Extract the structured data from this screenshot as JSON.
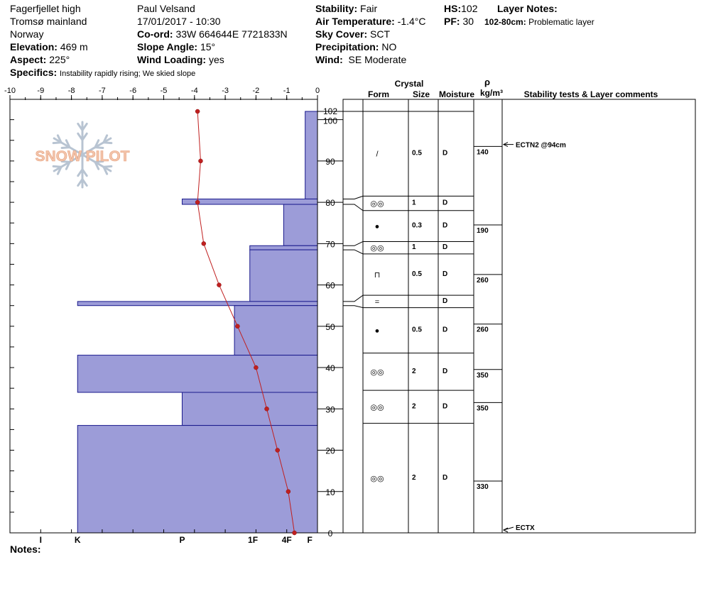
{
  "header": {
    "location": "Fagerfjellet high",
    "region": "Tromsø mainland",
    "country": "Norway",
    "elevation_label": "Elevation:",
    "elevation": "469 m",
    "aspect_label": "Aspect:",
    "aspect": "225°",
    "specifics_label": "Specifics:",
    "specifics": "Instability rapidly rising;  We skied slope",
    "observer": "Paul Velsand",
    "datetime": "17/01/2017 - 10:30",
    "coord_label": "Co-ord:",
    "coord": "33W 664644E 7721833N",
    "slope_label": "Slope Angle:",
    "slope": "15°",
    "wind_loading_label": "Wind Loading:",
    "wind_loading": "yes",
    "stability_label": "Stability:",
    "stability": "Fair",
    "air_temp_label": "Air Temperature:",
    "air_temp": "-1.4°C",
    "sky_label": "Sky Cover:",
    "sky": "SCT",
    "precip_label": "Precipitation:",
    "precip": "NO",
    "wind_label": "Wind:",
    "wind": "SE Moderate",
    "hs_label": "HS:",
    "hs": "102",
    "pf_label": "PF:",
    "pf": "30",
    "layer_notes_label": "Layer Notes:",
    "layer_note_range": "102-80cm:",
    "layer_note_text": "Problematic layer"
  },
  "notes_label": "Notes:",
  "watermark": {
    "text": "SNOW PILOT"
  },
  "columns": {
    "crystal": "Crystal",
    "form": "Form",
    "size": "Size",
    "moisture": "Moisture",
    "rho": "ρ",
    "density_unit": "kg/m³",
    "stability_comments": "Stability tests & Layer comments"
  },
  "chart_data": {
    "type": "profile",
    "temperature_axis": {
      "ticks": [
        -10,
        -9,
        -8,
        -7,
        -6,
        -5,
        -4,
        -3,
        -2,
        -1,
        0
      ],
      "range": [
        -10,
        0
      ]
    },
    "height_axis": {
      "ticks": [
        0,
        10,
        20,
        30,
        40,
        50,
        60,
        70,
        80,
        90,
        100,
        102
      ],
      "range": [
        0,
        102
      ]
    },
    "hardness_axis": {
      "labels": [
        "I",
        "K",
        "P",
        "1F",
        "4F",
        "F"
      ],
      "positions": [
        -9,
        -7.8,
        -4.4,
        -2.1,
        -1.0,
        -0.25
      ]
    },
    "temperature_profile": [
      {
        "h": 102,
        "t": -3.9
      },
      {
        "h": 90,
        "t": -3.8
      },
      {
        "h": 80,
        "t": -3.9
      },
      {
        "h": 70,
        "t": -3.7
      },
      {
        "h": 60,
        "t": -3.2
      },
      {
        "h": 50,
        "t": -2.6
      },
      {
        "h": 40,
        "t": -2.0
      },
      {
        "h": 30,
        "t": -1.65
      },
      {
        "h": 20,
        "t": -1.3
      },
      {
        "h": 10,
        "t": -0.95
      },
      {
        "h": 0,
        "t": -0.75
      }
    ],
    "hardness_layers": [
      {
        "top": 102,
        "bottom": 80.8,
        "hardness": -0.4
      },
      {
        "top": 80.8,
        "bottom": 79.5,
        "hardness": -4.4
      },
      {
        "top": 79.5,
        "bottom": 69.5,
        "hardness": -1.1
      },
      {
        "top": 69.5,
        "bottom": 68.5,
        "hardness": -2.2
      },
      {
        "top": 68.5,
        "bottom": 56.0,
        "hardness": -2.2
      },
      {
        "top": 56.0,
        "bottom": 55.0,
        "hardness": -7.8
      },
      {
        "top": 55.0,
        "bottom": 43.0,
        "hardness": -2.7
      },
      {
        "top": 43.0,
        "bottom": 34.0,
        "hardness": -7.8
      },
      {
        "top": 34.0,
        "bottom": 26.0,
        "hardness": -4.4
      },
      {
        "top": 26.0,
        "bottom": 0,
        "hardness": -7.8
      }
    ],
    "layer_table": [
      {
        "top": 102,
        "bottom": 81.5,
        "form": "/",
        "size": "0.5",
        "moisture": "D"
      },
      {
        "top": 81.5,
        "bottom": 78,
        "form": "◎◎",
        "size": "1",
        "moisture": "D"
      },
      {
        "top": 78,
        "bottom": 70.5,
        "form": "●",
        "size": "0.3",
        "moisture": "D"
      },
      {
        "top": 70.5,
        "bottom": 67.5,
        "form": "◎◎",
        "size": "1",
        "moisture": "D"
      },
      {
        "top": 67.5,
        "bottom": 57.5,
        "form": "⊓",
        "size": "0.5",
        "moisture": "D"
      },
      {
        "top": 57.5,
        "bottom": 54.5,
        "form": "=",
        "size": "",
        "moisture": "D"
      },
      {
        "top": 54.5,
        "bottom": 43.5,
        "form": "●",
        "size": "0.5",
        "moisture": "D"
      },
      {
        "top": 43.5,
        "bottom": 34.5,
        "form": "◎◎",
        "size": "2",
        "moisture": "D"
      },
      {
        "top": 34.5,
        "bottom": 26.5,
        "form": "◎◎",
        "size": "2",
        "moisture": "D"
      },
      {
        "top": 26.5,
        "bottom": 0,
        "form": "◎◎",
        "size": "2",
        "moisture": "D"
      }
    ],
    "layer_connectors": [
      {
        "left": 81.5,
        "right": 80.8
      },
      {
        "left": 78,
        "right": 79.5
      },
      {
        "left": 70.5,
        "right": 69.5
      },
      {
        "left": 67.5,
        "right": 68.5
      },
      {
        "left": 57.5,
        "right": 56.0
      },
      {
        "left": 54.5,
        "right": 55.0
      }
    ],
    "density": [
      {
        "h": 92.5,
        "value": "140"
      },
      {
        "h": 73.5,
        "value": "190"
      },
      {
        "h": 61.5,
        "value": "260"
      },
      {
        "h": 49.5,
        "value": "260"
      },
      {
        "h": 38.5,
        "value": "350"
      },
      {
        "h": 30.5,
        "value": "350"
      },
      {
        "h": 11.5,
        "value": "330"
      }
    ],
    "stability_tests": [
      {
        "h": 94,
        "label": "ECTN2 @94cm"
      },
      {
        "h": 0,
        "label": "ECTX"
      }
    ]
  }
}
